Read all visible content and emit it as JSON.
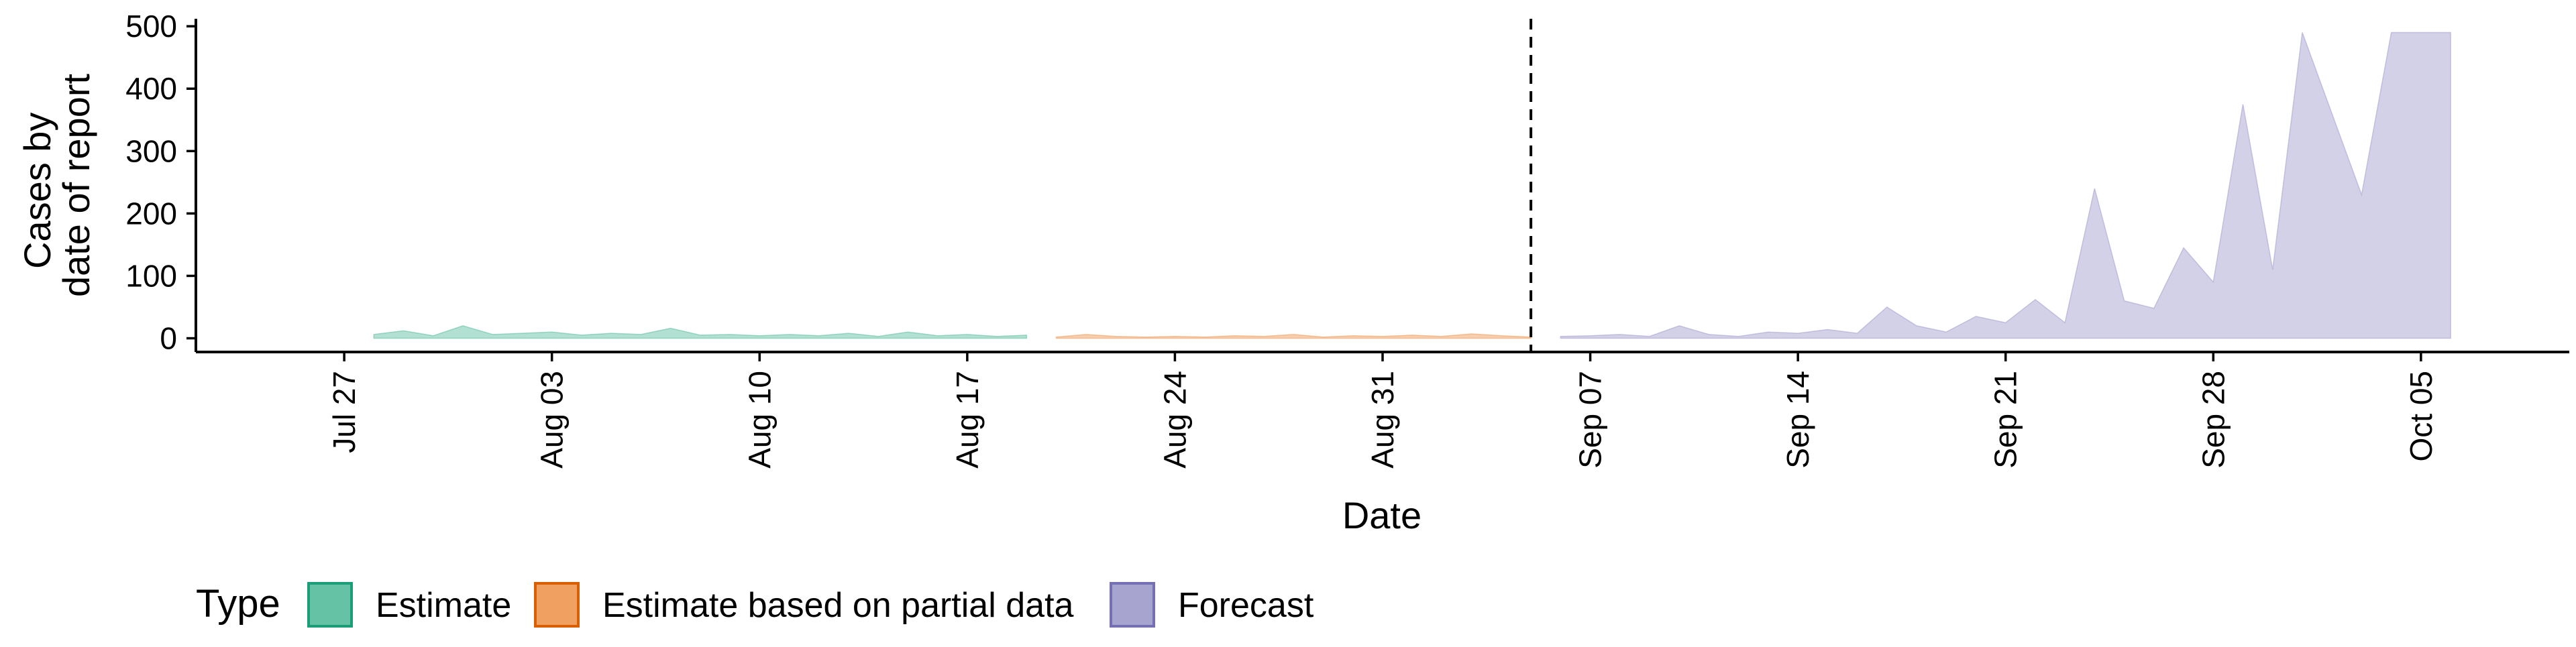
{
  "chart_data": {
    "type": "area",
    "title": "",
    "xlabel": "Date",
    "ylabel_lines": [
      "Cases by",
      "date of report"
    ],
    "ylim": [
      -22,
      512
    ],
    "y_ticks": [
      0,
      100,
      200,
      300,
      400,
      500
    ],
    "x_ticks": [
      {
        "label": "Jul 27",
        "date": "2020-07-27"
      },
      {
        "label": "Aug 03",
        "date": "2020-08-03"
      },
      {
        "label": "Aug 10",
        "date": "2020-08-10"
      },
      {
        "label": "Aug 17",
        "date": "2020-08-17"
      },
      {
        "label": "Aug 24",
        "date": "2020-08-24"
      },
      {
        "label": "Aug 31",
        "date": "2020-08-31"
      },
      {
        "label": "Sep 07",
        "date": "2020-09-07"
      },
      {
        "label": "Sep 14",
        "date": "2020-09-14"
      },
      {
        "label": "Sep 21",
        "date": "2020-09-21"
      },
      {
        "label": "Sep 28",
        "date": "2020-09-28"
      },
      {
        "label": "Oct 05",
        "date": "2020-10-05"
      }
    ],
    "xlim": [
      "2020-07-22",
      "2020-10-10"
    ],
    "grid": false,
    "vline": {
      "date": "2020-09-05",
      "style": "dashed"
    },
    "legend": {
      "title": "Type",
      "position": "bottom",
      "items": [
        {
          "label": "Estimate",
          "fill": "#66c2a5",
          "stroke": "#1b9e77"
        },
        {
          "label": "Estimate based on partial data",
          "fill": "#f0a060",
          "stroke": "#d95f02"
        },
        {
          "label": "Forecast",
          "fill": "#a8a4d0",
          "stroke": "#7570b3"
        }
      ]
    },
    "series": [
      {
        "name": "Estimate",
        "color": "#66c2a5",
        "opacity": 0.5,
        "x": [
          "2020-07-28",
          "2020-07-29",
          "2020-07-30",
          "2020-07-31",
          "2020-08-01",
          "2020-08-02",
          "2020-08-03",
          "2020-08-04",
          "2020-08-05",
          "2020-08-06",
          "2020-08-07",
          "2020-08-08",
          "2020-08-09",
          "2020-08-10",
          "2020-08-11",
          "2020-08-12",
          "2020-08-13",
          "2020-08-14",
          "2020-08-15",
          "2020-08-16",
          "2020-08-17",
          "2020-08-18",
          "2020-08-19"
        ],
        "upper": [
          6,
          12,
          4,
          20,
          6,
          8,
          10,
          5,
          8,
          6,
          16,
          5,
          6,
          4,
          6,
          4,
          8,
          3,
          10,
          4,
          6,
          3,
          5
        ],
        "lower": [
          0,
          0,
          0,
          0,
          0,
          0,
          0,
          0,
          0,
          0,
          0,
          0,
          0,
          0,
          0,
          0,
          0,
          0,
          0,
          0,
          0,
          0,
          0
        ]
      },
      {
        "name": "Estimate based on partial data",
        "color": "#f0a060",
        "opacity": 0.5,
        "x": [
          "2020-08-20",
          "2020-08-21",
          "2020-08-22",
          "2020-08-23",
          "2020-08-24",
          "2020-08-25",
          "2020-08-26",
          "2020-08-27",
          "2020-08-28",
          "2020-08-29",
          "2020-08-30",
          "2020-08-31",
          "2020-09-01",
          "2020-09-02",
          "2020-09-03",
          "2020-09-04",
          "2020-09-05"
        ],
        "upper": [
          2,
          6,
          3,
          2,
          3,
          2,
          4,
          3,
          6,
          2,
          4,
          3,
          5,
          3,
          7,
          4,
          2
        ],
        "lower": [
          0,
          0,
          0,
          0,
          0,
          0,
          0,
          0,
          0,
          0,
          0,
          0,
          0,
          0,
          0,
          0,
          0
        ]
      },
      {
        "name": "Forecast",
        "color": "#a8a4d0",
        "opacity": 0.5,
        "x": [
          "2020-09-06",
          "2020-09-07",
          "2020-09-08",
          "2020-09-09",
          "2020-09-10",
          "2020-09-11",
          "2020-09-12",
          "2020-09-13",
          "2020-09-14",
          "2020-09-15",
          "2020-09-16",
          "2020-09-17",
          "2020-09-18",
          "2020-09-19",
          "2020-09-20",
          "2020-09-21",
          "2020-09-22",
          "2020-09-23",
          "2020-09-24",
          "2020-09-25",
          "2020-09-26",
          "2020-09-27",
          "2020-09-28",
          "2020-09-29",
          "2020-09-30",
          "2020-10-01",
          "2020-10-02",
          "2020-10-03",
          "2020-10-04",
          "2020-10-05",
          "2020-10-06"
        ],
        "upper": [
          3,
          4,
          6,
          3,
          20,
          6,
          3,
          10,
          8,
          14,
          8,
          50,
          20,
          10,
          35,
          25,
          62,
          25,
          240,
          60,
          48,
          145,
          90,
          375,
          110,
          490,
          360,
          230,
          490,
          490,
          490
        ],
        "lower": [
          0,
          0,
          0,
          0,
          0,
          0,
          0,
          0,
          0,
          0,
          0,
          0,
          0,
          0,
          0,
          0,
          0,
          0,
          0,
          0,
          0,
          0,
          0,
          0,
          0,
          0,
          0,
          0,
          0,
          0,
          0
        ]
      }
    ]
  }
}
